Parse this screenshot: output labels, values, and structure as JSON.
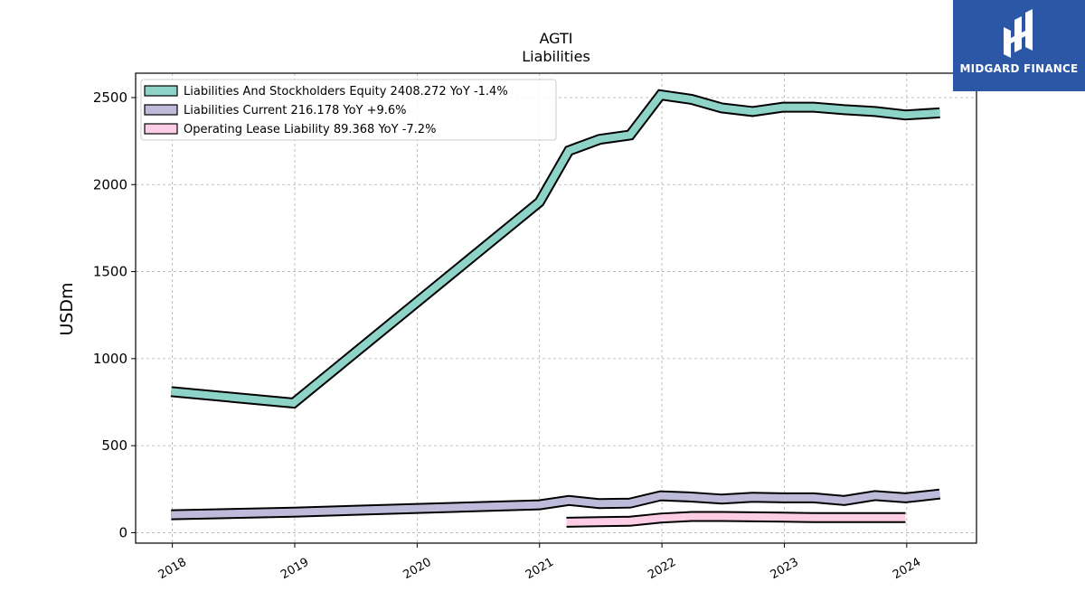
{
  "chart_data": {
    "type": "line",
    "title": "AGTI",
    "subtitle": "Liabilities",
    "ylabel": "USDm",
    "xlabel": "",
    "xlim": [
      2017.7,
      2024.57
    ],
    "ylim": [
      -60,
      2640
    ],
    "yticks": [
      0,
      500,
      1000,
      1500,
      2000,
      2500
    ],
    "xticks": [
      {
        "value": 2018,
        "label": "2018"
      },
      {
        "value": 2019,
        "label": "2019"
      },
      {
        "value": 2020,
        "label": "2020"
      },
      {
        "value": 2021,
        "label": "2021"
      },
      {
        "value": 2022,
        "label": "2022"
      },
      {
        "value": 2023,
        "label": "2023"
      },
      {
        "value": 2024,
        "label": "2024"
      }
    ],
    "grid": true,
    "legend_position": "top-left",
    "series": [
      {
        "name": "Liabilities And Stockholders Equity  2408.272 YoY -1.4%",
        "color": "#8dd3c7",
        "x": [
          2017.99,
          2018.99,
          2021.0,
          2021.24,
          2021.49,
          2021.74,
          2021.99,
          2022.24,
          2022.49,
          2022.74,
          2022.99,
          2023.24,
          2023.49,
          2023.74,
          2023.99,
          2024.27
        ],
        "values": [
          810,
          745,
          1900,
          2195,
          2260,
          2285,
          2515,
          2490,
          2440,
          2420,
          2445,
          2445,
          2430,
          2420,
          2400,
          2412
        ]
      },
      {
        "name": "Liabilities Current  216.178 YoY +9.6%",
        "color": "#bebada",
        "x": [
          2017.99,
          2018.99,
          2021.0,
          2021.24,
          2021.49,
          2021.74,
          2021.99,
          2022.24,
          2022.49,
          2022.74,
          2022.99,
          2023.24,
          2023.49,
          2023.74,
          2023.99,
          2024.27
        ],
        "values": [
          103,
          118,
          160,
          185,
          167,
          170,
          212,
          205,
          193,
          203,
          200,
          200,
          185,
          213,
          200,
          222
        ]
      },
      {
        "name": "Operating Lease Liability  89.368 YoY -7.2%",
        "color": "#fccde5",
        "x": [
          2021.22,
          2021.49,
          2021.74,
          2021.99,
          2022.24,
          2022.49,
          2022.74,
          2022.99,
          2023.24,
          2023.49,
          2023.74,
          2023.99
        ],
        "values": [
          60,
          63,
          66,
          84,
          93,
          93,
          91,
          89,
          87,
          87,
          87,
          87
        ]
      }
    ]
  },
  "logo": {
    "text": "MIDGARD FINANCE",
    "background": "#2b57a6"
  }
}
